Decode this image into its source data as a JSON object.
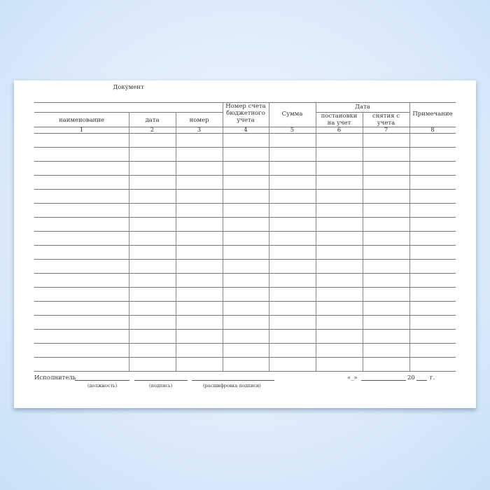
{
  "form": {
    "header": {
      "document": "Документ",
      "name": "наименование",
      "date": "дата",
      "number": "номер",
      "account": "Номер счета бюджетного учета",
      "sum": "Сумма",
      "date_group": "Дата",
      "registration": "постановки на учет",
      "removal": "снятия с учета",
      "note": "Примечание"
    },
    "column_numbers": [
      "1",
      "2",
      "3",
      "4",
      "5",
      "6",
      "7",
      "8"
    ],
    "rows": [
      [
        "",
        "",
        "",
        "",
        "",
        "",
        "",
        ""
      ],
      [
        "",
        "",
        "",
        "",
        "",
        "",
        "",
        ""
      ],
      [
        "",
        "",
        "",
        "",
        "",
        "",
        "",
        ""
      ],
      [
        "",
        "",
        "",
        "",
        "",
        "",
        "",
        ""
      ],
      [
        "",
        "",
        "",
        "",
        "",
        "",
        "",
        ""
      ],
      [
        "",
        "",
        "",
        "",
        "",
        "",
        "",
        ""
      ],
      [
        "",
        "",
        "",
        "",
        "",
        "",
        "",
        ""
      ],
      [
        "",
        "",
        "",
        "",
        "",
        "",
        "",
        ""
      ],
      [
        "",
        "",
        "",
        "",
        "",
        "",
        "",
        ""
      ],
      [
        "",
        "",
        "",
        "",
        "",
        "",
        "",
        ""
      ],
      [
        "",
        "",
        "",
        "",
        "",
        "",
        "",
        ""
      ],
      [
        "",
        "",
        "",
        "",
        "",
        "",
        "",
        ""
      ],
      [
        "",
        "",
        "",
        "",
        "",
        "",
        "",
        ""
      ],
      [
        "",
        "",
        "",
        "",
        "",
        "",
        "",
        ""
      ],
      [
        "",
        "",
        "",
        "",
        "",
        "",
        "",
        ""
      ],
      [
        "",
        "",
        "",
        "",
        "",
        "",
        "",
        ""
      ],
      [
        "",
        "",
        "",
        "",
        "",
        "",
        "",
        ""
      ]
    ],
    "footer": {
      "executor": "Исполнитель",
      "position": "(должность)",
      "signature": "(подпись)",
      "signature_decode": "(расшифровка подписи)",
      "quote": "«_»",
      "year": "20",
      "year_suffix": "г."
    }
  }
}
